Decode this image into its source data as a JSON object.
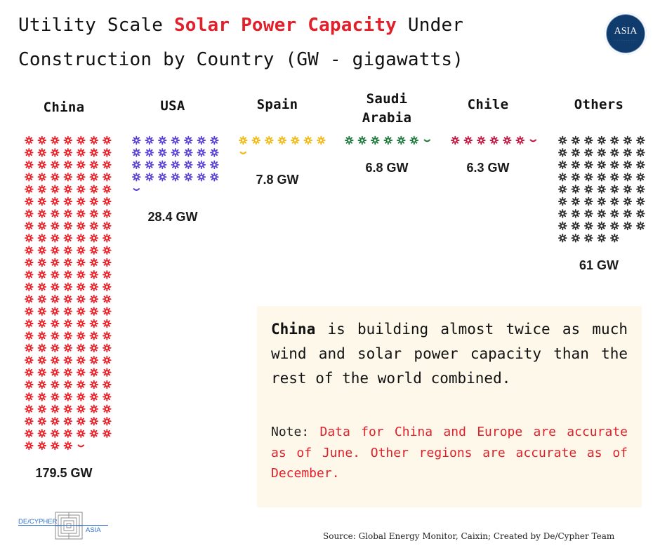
{
  "title": {
    "prefix": "Utility Scale ",
    "accent": "Solar Power Capacity",
    "suffix": " Under Construction by Country (GW - gigawatts)"
  },
  "badge": {
    "text": "ASIA",
    "color": "#0f3b6d"
  },
  "colors": {
    "accent": "#e0202a",
    "China": "#ee1c24",
    "USA": "#5a3fd6",
    "Spain": "#f2b80f",
    "Saudi Arabia": "#1f7a3c",
    "Chile": "#c4163f",
    "Others": "#2b2b2b"
  },
  "chart_data": {
    "type": "pictogram",
    "title": "Utility Scale Solar Power Capacity Under Construction by Country (GW - gigawatts)",
    "unit": "GW",
    "categories": [
      "China",
      "USA",
      "Spain",
      "Saudi Arabia",
      "Chile",
      "Others"
    ],
    "category_lines": [
      [
        "China"
      ],
      [
        "USA"
      ],
      [
        "Spain"
      ],
      [
        "Saudi",
        "Arabia"
      ],
      [
        "Chile"
      ],
      [
        "Others"
      ]
    ],
    "values": [
      179.5,
      28.4,
      7.8,
      6.8,
      6.3,
      61
    ],
    "value_labels": [
      "179.5 GW",
      "28.4 GW",
      "7.8 GW",
      "6.8 GW",
      "6.3 GW",
      "61 GW"
    ],
    "icon": "sun-icon",
    "icons_per_row": 7,
    "gw_per_icon": 1
  },
  "note": {
    "main_bold": "China",
    "main_rest": " is building almost twice as much wind and solar power capacity than the rest of the world combined.",
    "secondary_label": "Note: ",
    "secondary_text": "Data for China and Europe  are accurate as of June. Other regions are accurate as of December."
  },
  "logo": {
    "left": "DE/CYPHER",
    "right": "ASIA"
  },
  "source": "Source: Global Energy Monitor, Caixin; Created by De/Cypher Team"
}
